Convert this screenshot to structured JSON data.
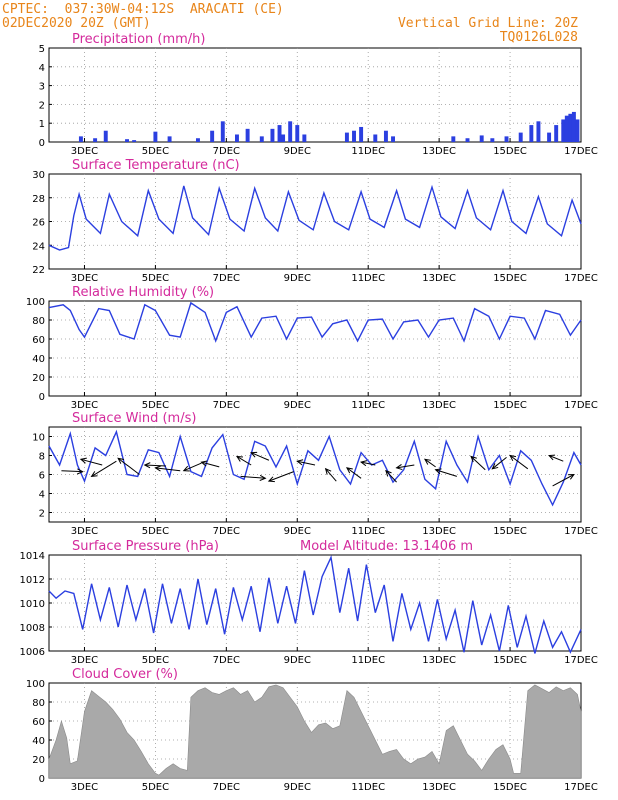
{
  "header": {
    "line1": "CPTEC:  037:30W-04:12S  ARACATI (CE)",
    "line2": "02DEC2020 20Z (GMT)",
    "right1": "Vertical Grid Line: 20Z",
    "right2": "TQ0126L028"
  },
  "colors": {
    "header": "#e8851a",
    "title": "#d42a9c",
    "line": "#2b3fe0",
    "bar": "#a9a9a9",
    "arrow": "#000000"
  },
  "x_tick_labels": [
    "3DEC",
    "5DEC",
    "7DEC",
    "9DEC",
    "11DEC",
    "13DEC",
    "15DEC",
    "17DEC"
  ],
  "model_altitude": "Model Altitude: 13.1406 m",
  "chart_data": [
    {
      "type": "bar",
      "title": "Precipitation (mm/h)",
      "ylim": [
        0,
        5
      ],
      "yticks": [
        "0",
        "1",
        "2",
        "3",
        "4",
        "5"
      ],
      "x_range_days": [
        2.0,
        17.0
      ],
      "x": [
        2.9,
        3.3,
        3.6,
        4.2,
        4.4,
        5.0,
        5.4,
        6.2,
        6.6,
        6.9,
        7.3,
        7.6,
        8.0,
        8.3,
        8.5,
        8.6,
        8.8,
        9.0,
        9.2,
        10.4,
        10.6,
        10.8,
        11.2,
        11.5,
        11.7,
        13.4,
        13.8,
        14.2,
        14.5,
        14.9,
        15.3,
        15.6,
        15.8,
        16.1,
        16.3,
        16.5,
        16.6,
        16.7,
        16.8,
        16.9
      ],
      "values": [
        0.3,
        0.2,
        0.6,
        0.15,
        0.1,
        0.55,
        0.3,
        0.2,
        0.6,
        1.1,
        0.4,
        0.7,
        0.3,
        0.7,
        0.9,
        0.4,
        1.1,
        0.9,
        0.4,
        0.5,
        0.6,
        0.8,
        0.4,
        0.6,
        0.3,
        0.3,
        0.2,
        0.35,
        0.2,
        0.3,
        0.5,
        0.9,
        1.1,
        0.5,
        0.9,
        1.2,
        1.4,
        1.5,
        1.6,
        1.2
      ]
    },
    {
      "type": "line",
      "title": "Surface Temperature (nC)",
      "ylim": [
        22,
        30
      ],
      "yticks": [
        "22",
        "24",
        "26",
        "28",
        "30"
      ],
      "x_range_days": [
        2.0,
        17.0
      ],
      "x": [
        2.0,
        2.3,
        2.55,
        2.7,
        2.85,
        3.05,
        3.45,
        3.7,
        4.05,
        4.5,
        4.8,
        5.1,
        5.5,
        5.8,
        6.05,
        6.5,
        6.8,
        7.1,
        7.5,
        7.8,
        8.1,
        8.45,
        8.75,
        9.05,
        9.45,
        9.75,
        10.05,
        10.45,
        10.8,
        11.05,
        11.45,
        11.8,
        12.05,
        12.45,
        12.8,
        13.05,
        13.45,
        13.8,
        14.05,
        14.45,
        14.8,
        15.05,
        15.45,
        15.8,
        16.05,
        16.45,
        16.75,
        17.0
      ],
      "values": [
        24.0,
        23.6,
        23.8,
        26.5,
        28.3,
        26.2,
        25.0,
        28.3,
        26.0,
        24.8,
        28.6,
        26.2,
        25.0,
        29.0,
        26.3,
        24.9,
        28.8,
        26.2,
        25.2,
        28.8,
        26.3,
        25.2,
        28.5,
        26.1,
        25.3,
        28.4,
        26.0,
        25.3,
        28.5,
        26.2,
        25.5,
        28.6,
        26.2,
        25.5,
        28.9,
        26.4,
        25.4,
        28.6,
        26.3,
        25.3,
        28.6,
        26.0,
        25.0,
        28.1,
        25.8,
        24.8,
        27.8,
        25.8
      ]
    },
    {
      "type": "line",
      "title": "Relative Humidity (%)",
      "ylim": [
        0,
        100
      ],
      "yticks": [
        "0",
        "20",
        "40",
        "60",
        "80",
        "100"
      ],
      "x_range_days": [
        2.0,
        17.0
      ],
      "x": [
        2.0,
        2.4,
        2.6,
        2.85,
        3.0,
        3.4,
        3.7,
        4.0,
        4.4,
        4.7,
        5.0,
        5.4,
        5.7,
        6.0,
        6.4,
        6.7,
        7.0,
        7.3,
        7.7,
        8.0,
        8.4,
        8.7,
        9.0,
        9.4,
        9.7,
        10.0,
        10.4,
        10.7,
        11.0,
        11.4,
        11.7,
        12.0,
        12.4,
        12.7,
        13.0,
        13.4,
        13.7,
        14.0,
        14.4,
        14.7,
        15.0,
        15.4,
        15.7,
        16.0,
        16.4,
        16.7,
        17.0
      ],
      "values": [
        93,
        96,
        90,
        70,
        62,
        92,
        90,
        65,
        60,
        96,
        90,
        64,
        62,
        98,
        88,
        58,
        88,
        94,
        62,
        82,
        84,
        60,
        82,
        83,
        62,
        76,
        80,
        58,
        80,
        81,
        60,
        78,
        80,
        62,
        80,
        82,
        58,
        92,
        84,
        60,
        84,
        82,
        60,
        90,
        86,
        64,
        80
      ]
    },
    {
      "type": "line",
      "title": "Surface Wind (m/s)",
      "ylim": [
        1,
        11
      ],
      "yticks": [
        "2",
        "4",
        "6",
        "8",
        "10"
      ],
      "x_range_days": [
        2.0,
        17.0
      ],
      "x": [
        2.0,
        2.3,
        2.6,
        2.8,
        3.0,
        3.3,
        3.6,
        3.9,
        4.2,
        4.5,
        4.8,
        5.1,
        5.4,
        5.7,
        6.0,
        6.3,
        6.6,
        6.9,
        7.2,
        7.5,
        7.8,
        8.1,
        8.4,
        8.7,
        9.0,
        9.3,
        9.6,
        9.9,
        10.2,
        10.5,
        10.8,
        11.1,
        11.4,
        11.7,
        12.0,
        12.3,
        12.6,
        12.9,
        13.2,
        13.5,
        13.8,
        14.1,
        14.4,
        14.7,
        15.0,
        15.3,
        15.6,
        15.9,
        16.2,
        16.5,
        16.8,
        17.0
      ],
      "values": [
        9.0,
        7.0,
        10.3,
        7.0,
        5.3,
        8.8,
        8.0,
        10.5,
        6.0,
        5.8,
        8.6,
        8.3,
        5.8,
        10.0,
        6.3,
        5.8,
        8.8,
        10.2,
        6.0,
        5.5,
        9.5,
        9.0,
        6.8,
        9.0,
        5.0,
        8.5,
        7.5,
        10.0,
        6.5,
        5.0,
        8.3,
        7.0,
        7.5,
        5.2,
        6.5,
        9.5,
        5.5,
        4.5,
        9.5,
        7.0,
        5.2,
        10.0,
        6.5,
        8.0,
        5.0,
        8.5,
        7.5,
        5.0,
        2.8,
        5.2,
        8.3,
        7.0
      ],
      "vectors": [
        {
          "x": 2.35,
          "y": 6.4,
          "dx": 0.6,
          "dy": -0.1
        },
        {
          "x": 3.5,
          "y": 7.0,
          "dx": -0.6,
          "dy": 0.6
        },
        {
          "x": 3.9,
          "y": 7.4,
          "dx": -0.7,
          "dy": -1.6
        },
        {
          "x": 4.55,
          "y": 6.0,
          "dx": -0.6,
          "dy": 1.7
        },
        {
          "x": 5.3,
          "y": 6.9,
          "dx": -0.6,
          "dy": 0.1
        },
        {
          "x": 5.7,
          "y": 6.4,
          "dx": -0.7,
          "dy": 0.3
        },
        {
          "x": 6.3,
          "y": 7.2,
          "dx": -0.5,
          "dy": -0.8
        },
        {
          "x": 6.8,
          "y": 6.8,
          "dx": -0.5,
          "dy": 0.5
        },
        {
          "x": 7.4,
          "y": 5.8,
          "dx": 0.7,
          "dy": -0.2
        },
        {
          "x": 7.7,
          "y": 7.0,
          "dx": -0.4,
          "dy": 0.9
        },
        {
          "x": 8.2,
          "y": 7.5,
          "dx": -0.5,
          "dy": 0.8
        },
        {
          "x": 8.9,
          "y": 6.3,
          "dx": -0.7,
          "dy": -1.0
        },
        {
          "x": 9.5,
          "y": 7.0,
          "dx": -0.5,
          "dy": 0.4
        },
        {
          "x": 10.1,
          "y": 5.3,
          "dx": -0.3,
          "dy": 1.3
        },
        {
          "x": 10.8,
          "y": 5.6,
          "dx": -0.4,
          "dy": 1.1
        },
        {
          "x": 11.2,
          "y": 7.0,
          "dx": -0.4,
          "dy": 0.3
        },
        {
          "x": 11.8,
          "y": 5.2,
          "dx": -0.3,
          "dy": 1.2
        },
        {
          "x": 12.3,
          "y": 7.0,
          "dx": -0.5,
          "dy": -0.3
        },
        {
          "x": 12.9,
          "y": 6.8,
          "dx": -0.3,
          "dy": 0.8
        },
        {
          "x": 13.5,
          "y": 5.8,
          "dx": -0.6,
          "dy": 0.7
        },
        {
          "x": 14.3,
          "y": 6.5,
          "dx": -0.4,
          "dy": 1.4
        },
        {
          "x": 14.9,
          "y": 7.8,
          "dx": -0.4,
          "dy": -1.2
        },
        {
          "x": 15.5,
          "y": 6.6,
          "dx": -0.5,
          "dy": 1.4
        },
        {
          "x": 16.2,
          "y": 4.8,
          "dx": 0.6,
          "dy": 1.2
        },
        {
          "x": 16.5,
          "y": 7.4,
          "dx": -0.4,
          "dy": 0.6
        }
      ]
    },
    {
      "type": "line",
      "title": "Surface Pressure (hPa)",
      "ylim": [
        1006,
        1014
      ],
      "yticks": [
        "1006",
        "1008",
        "1010",
        "1012",
        "1014"
      ],
      "x_range_days": [
        2.0,
        17.0
      ],
      "x": [
        2.0,
        2.2,
        2.45,
        2.7,
        2.95,
        3.2,
        3.45,
        3.7,
        3.95,
        4.2,
        4.45,
        4.7,
        4.95,
        5.2,
        5.45,
        5.7,
        5.95,
        6.2,
        6.45,
        6.7,
        6.95,
        7.2,
        7.45,
        7.7,
        7.95,
        8.2,
        8.45,
        8.7,
        8.95,
        9.2,
        9.45,
        9.7,
        9.95,
        10.2,
        10.45,
        10.7,
        10.95,
        11.2,
        11.45,
        11.7,
        11.95,
        12.2,
        12.45,
        12.7,
        12.95,
        13.2,
        13.45,
        13.7,
        13.95,
        14.2,
        14.45,
        14.7,
        14.95,
        15.2,
        15.45,
        15.7,
        15.95,
        16.2,
        16.45,
        16.7,
        17.0
      ],
      "values": [
        1011.0,
        1010.4,
        1011.0,
        1010.8,
        1007.8,
        1011.6,
        1008.6,
        1011.3,
        1008.0,
        1011.5,
        1008.6,
        1011.2,
        1007.5,
        1011.6,
        1008.3,
        1011.2,
        1007.8,
        1012.0,
        1008.2,
        1011.2,
        1007.4,
        1011.3,
        1008.6,
        1011.4,
        1007.6,
        1012.1,
        1008.3,
        1011.4,
        1008.3,
        1012.7,
        1009.0,
        1012.2,
        1013.8,
        1009.2,
        1012.9,
        1008.5,
        1013.2,
        1009.2,
        1011.5,
        1006.8,
        1010.8,
        1007.8,
        1010.0,
        1006.8,
        1010.3,
        1007.0,
        1009.4,
        1005.9,
        1010.2,
        1006.5,
        1009.0,
        1006.0,
        1009.8,
        1006.3,
        1008.9,
        1005.8,
        1008.5,
        1006.3,
        1007.6,
        1005.9,
        1007.8
      ]
    },
    {
      "type": "area",
      "title": "Cloud Cover (%)",
      "ylim": [
        0,
        100
      ],
      "yticks": [
        "0",
        "20",
        "40",
        "60",
        "80",
        "100"
      ],
      "x_range_days": [
        2.0,
        17.0
      ],
      "x": [
        2.0,
        2.2,
        2.35,
        2.5,
        2.6,
        2.8,
        3.0,
        3.2,
        3.4,
        3.6,
        3.8,
        4.0,
        4.2,
        4.4,
        4.6,
        4.8,
        5.0,
        5.1,
        5.3,
        5.5,
        5.7,
        5.9,
        6.0,
        6.2,
        6.4,
        6.6,
        6.8,
        7.0,
        7.2,
        7.4,
        7.6,
        7.8,
        8.0,
        8.2,
        8.4,
        8.6,
        8.8,
        9.0,
        9.2,
        9.4,
        9.6,
        9.8,
        10.0,
        10.2,
        10.4,
        10.6,
        10.8,
        11.0,
        11.2,
        11.4,
        11.6,
        11.8,
        12.0,
        12.2,
        12.4,
        12.6,
        12.8,
        13.0,
        13.2,
        13.4,
        13.6,
        13.8,
        14.0,
        14.2,
        14.4,
        14.6,
        14.8,
        15.0,
        15.1,
        15.3,
        15.5,
        15.7,
        15.9,
        16.1,
        16.3,
        16.5,
        16.7,
        16.9,
        17.0
      ],
      "values": [
        20,
        40,
        60,
        42,
        15,
        18,
        70,
        92,
        86,
        80,
        72,
        62,
        48,
        40,
        28,
        15,
        5,
        3,
        10,
        15,
        10,
        8,
        85,
        92,
        95,
        90,
        88,
        92,
        95,
        88,
        92,
        80,
        85,
        96,
        98,
        95,
        85,
        75,
        60,
        48,
        56,
        58,
        52,
        55,
        92,
        85,
        70,
        55,
        40,
        25,
        28,
        30,
        20,
        15,
        20,
        22,
        28,
        15,
        50,
        55,
        40,
        25,
        18,
        8,
        20,
        30,
        35,
        20,
        5,
        5,
        92,
        98,
        94,
        90,
        96,
        92,
        95,
        88,
        70
      ]
    }
  ]
}
